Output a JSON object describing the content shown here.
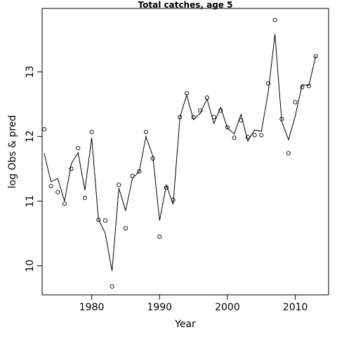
{
  "chart_data": {
    "type": "line",
    "title": "Total catches, age 5",
    "xlabel": "Year",
    "ylabel": "log Obs & pred",
    "xlim": [
      1972.7,
      2014.9
    ],
    "ylim": [
      9.55,
      13.98
    ],
    "x_ticks": [
      1980,
      1990,
      2000,
      2010
    ],
    "y_ticks": [
      10,
      11,
      12,
      13
    ],
    "grid": false,
    "series": [
      {
        "kind": "points",
        "x": [
          1973,
          1974,
          1975,
          1976,
          1977,
          1978,
          1979,
          1980,
          1981,
          1982,
          1983,
          1984,
          1985,
          1986,
          1987,
          1988,
          1989,
          1990,
          1991,
          1992,
          1993,
          1994,
          1995,
          1996,
          1997,
          1998,
          1999,
          2000,
          2001,
          2002,
          2003,
          2004,
          2005,
          2006,
          2007,
          2008,
          2009,
          2010,
          2011,
          2012,
          2013
        ],
        "values": [
          12.11,
          11.23,
          11.14,
          10.96,
          11.5,
          11.82,
          11.05,
          12.07,
          10.71,
          10.7,
          9.68,
          11.25,
          10.58,
          11.39,
          11.46,
          12.07,
          11.66,
          10.45,
          11.21,
          11.02,
          12.3,
          12.67,
          12.3,
          12.4,
          12.6,
          12.3,
          12.4,
          12.14,
          11.98,
          12.25,
          11.99,
          12.02,
          12.02,
          12.82,
          13.8,
          12.27,
          11.74,
          12.53,
          12.76,
          12.78,
          13.24
        ]
      },
      {
        "kind": "line",
        "x": [
          1973,
          1974,
          1975,
          1976,
          1977,
          1978,
          1979,
          1980,
          1981,
          1982,
          1983,
          1984,
          1985,
          1986,
          1987,
          1988,
          1989,
          1990,
          1991,
          1992,
          1993,
          1994,
          1995,
          1996,
          1997,
          1998,
          1999,
          2000,
          2001,
          2002,
          2003,
          2004,
          2005,
          2006,
          2007,
          2008,
          2009,
          2010,
          2011,
          2012,
          2013
        ],
        "values": [
          11.74,
          11.3,
          11.35,
          11.0,
          11.58,
          11.75,
          11.17,
          11.98,
          10.72,
          10.5,
          9.92,
          11.2,
          10.85,
          11.35,
          11.46,
          12.0,
          11.7,
          10.7,
          11.25,
          10.95,
          12.3,
          12.64,
          12.26,
          12.36,
          12.58,
          12.2,
          12.45,
          12.13,
          12.04,
          12.34,
          11.93,
          12.1,
          12.08,
          12.68,
          13.58,
          12.23,
          11.95,
          12.32,
          12.8,
          12.79,
          13.24
        ]
      }
    ]
  }
}
